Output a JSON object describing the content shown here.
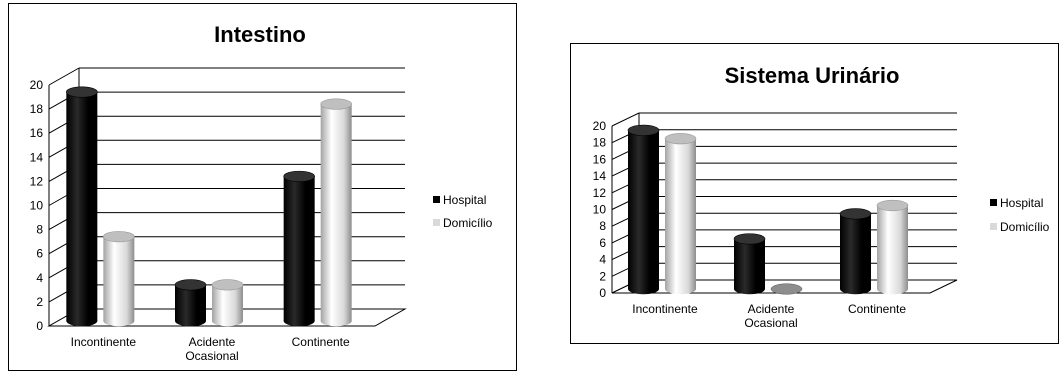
{
  "chart_data": [
    {
      "type": "bar",
      "title": "Intestino",
      "categories": [
        "Incontinente",
        "Acidente\nOcasional",
        "Continente"
      ],
      "series": [
        {
          "name": "Hospital",
          "values": [
            19,
            3,
            12
          ],
          "color": "#000000"
        },
        {
          "name": "Domicílio",
          "values": [
            7,
            3,
            18
          ],
          "color": "#d9d9d9"
        }
      ],
      "ylim": [
        0,
        20
      ],
      "yticks": [
        0,
        2,
        4,
        6,
        8,
        10,
        12,
        14,
        16,
        18,
        20
      ],
      "grid": true,
      "legend": "right"
    },
    {
      "type": "bar",
      "title": "Sistema Urinário",
      "categories": [
        "Incontinente",
        "Acidente\nOcasional",
        "Continente"
      ],
      "series": [
        {
          "name": "Hospital",
          "values": [
            19,
            6,
            9
          ],
          "color": "#000000"
        },
        {
          "name": "Domicílio",
          "values": [
            18,
            0,
            10
          ],
          "color": "#d9d9d9"
        }
      ],
      "ylim": [
        0,
        20
      ],
      "yticks": [
        0,
        2,
        4,
        6,
        8,
        10,
        12,
        14,
        16,
        18,
        20
      ],
      "grid": true,
      "legend": "right"
    }
  ]
}
